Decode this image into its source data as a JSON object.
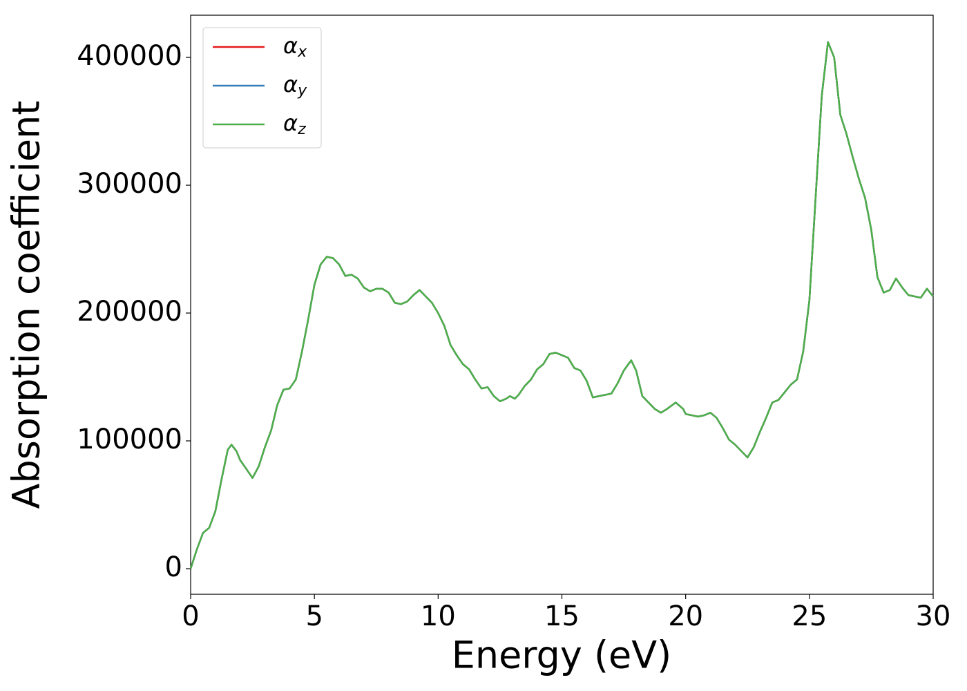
{
  "chart_data": {
    "type": "line",
    "xlabel": "Energy (eV)",
    "ylabel": "Absorption coefficient",
    "x": [
      0,
      0.25,
      0.5,
      0.75,
      1.0,
      1.25,
      1.5,
      1.65,
      1.85,
      2.0,
      2.25,
      2.5,
      2.75,
      3.0,
      3.25,
      3.5,
      3.75,
      4.0,
      4.25,
      4.5,
      4.75,
      5.0,
      5.25,
      5.5,
      5.75,
      6.0,
      6.25,
      6.5,
      6.75,
      7.0,
      7.25,
      7.5,
      7.75,
      8.0,
      8.25,
      8.5,
      8.75,
      9.0,
      9.25,
      9.5,
      9.75,
      10.0,
      10.25,
      10.5,
      10.75,
      11.0,
      11.25,
      11.5,
      11.75,
      12.0,
      12.25,
      12.5,
      12.75,
      12.9,
      13.1,
      13.25,
      13.5,
      13.75,
      14.0,
      14.25,
      14.5,
      14.75,
      15.0,
      15.25,
      15.5,
      15.75,
      16.0,
      16.25,
      16.5,
      17.0,
      17.25,
      17.5,
      17.8,
      18.0,
      18.25,
      18.5,
      18.75,
      19.0,
      19.25,
      19.6,
      19.9,
      20.0,
      20.5,
      20.75,
      21.0,
      21.25,
      21.5,
      21.75,
      22.0,
      22.25,
      22.5,
      22.75,
      23.0,
      23.25,
      23.5,
      23.75,
      24.0,
      24.25,
      24.5,
      24.75,
      25.0,
      25.25,
      25.5,
      25.75,
      26.0,
      26.25,
      26.5,
      26.75,
      27.0,
      27.25,
      27.5,
      27.75,
      28.0,
      28.25,
      28.5,
      28.75,
      29.0,
      29.5,
      29.75,
      30.0
    ],
    "series": [
      {
        "name": "αx",
        "color": "#e41a1c",
        "values": [
          0,
          15000,
          28000,
          32000,
          45000,
          70000,
          93000,
          97000,
          92000,
          85000,
          78000,
          71000,
          80000,
          95000,
          108000,
          128000,
          140000,
          141000,
          148000,
          170000,
          195000,
          222000,
          238000,
          244000,
          243000,
          238000,
          229000,
          230000,
          227000,
          220000,
          217000,
          219000,
          219000,
          216000,
          208000,
          207000,
          209000,
          214000,
          218000,
          213000,
          208000,
          200000,
          190000,
          175000,
          167000,
          160000,
          156000,
          148000,
          141000,
          142000,
          135000,
          131000,
          133000,
          135000,
          133000,
          136000,
          143000,
          148000,
          156000,
          160000,
          168000,
          169000,
          167000,
          165000,
          157000,
          155000,
          147000,
          134000,
          135000,
          137000,
          145000,
          155000,
          163000,
          155000,
          135000,
          130000,
          125000,
          122000,
          125000,
          130000,
          125000,
          121000,
          119000,
          120000,
          122000,
          118000,
          110000,
          101000,
          97000,
          92000,
          87000,
          95000,
          107000,
          118000,
          130000,
          132000,
          138000,
          144000,
          148000,
          170000,
          210000,
          290000,
          370000,
          412000,
          400000,
          355000,
          340000,
          322000,
          305000,
          290000,
          265000,
          228000,
          216000,
          218000,
          227000,
          220000,
          214000,
          212000,
          219000,
          213000
        ]
      },
      {
        "name": "αy",
        "color": "#377eb8",
        "values": [
          0,
          15000,
          28000,
          32000,
          45000,
          70000,
          93000,
          97000,
          92000,
          85000,
          78000,
          71000,
          80000,
          95000,
          108000,
          128000,
          140000,
          141000,
          148000,
          170000,
          195000,
          222000,
          238000,
          244000,
          243000,
          238000,
          229000,
          230000,
          227000,
          220000,
          217000,
          219000,
          219000,
          216000,
          208000,
          207000,
          209000,
          214000,
          218000,
          213000,
          208000,
          200000,
          190000,
          175000,
          167000,
          160000,
          156000,
          148000,
          141000,
          142000,
          135000,
          131000,
          133000,
          135000,
          133000,
          136000,
          143000,
          148000,
          156000,
          160000,
          168000,
          169000,
          167000,
          165000,
          157000,
          155000,
          147000,
          134000,
          135000,
          137000,
          145000,
          155000,
          163000,
          155000,
          135000,
          130000,
          125000,
          122000,
          125000,
          130000,
          125000,
          121000,
          119000,
          120000,
          122000,
          118000,
          110000,
          101000,
          97000,
          92000,
          87000,
          95000,
          107000,
          118000,
          130000,
          132000,
          138000,
          144000,
          148000,
          170000,
          210000,
          290000,
          370000,
          412000,
          400000,
          355000,
          340000,
          322000,
          305000,
          290000,
          265000,
          228000,
          216000,
          218000,
          227000,
          220000,
          214000,
          212000,
          219000,
          213000
        ]
      },
      {
        "name": "αz",
        "color": "#4daf4a",
        "values": [
          0,
          15000,
          28000,
          32000,
          45000,
          70000,
          93000,
          97000,
          92000,
          85000,
          78000,
          71000,
          80000,
          95000,
          108000,
          128000,
          140000,
          141000,
          148000,
          170000,
          195000,
          222000,
          238000,
          244000,
          243000,
          238000,
          229000,
          230000,
          227000,
          220000,
          217000,
          219000,
          219000,
          216000,
          208000,
          207000,
          209000,
          214000,
          218000,
          213000,
          208000,
          200000,
          190000,
          175000,
          167000,
          160000,
          156000,
          148000,
          141000,
          142000,
          135000,
          131000,
          133000,
          135000,
          133000,
          136000,
          143000,
          148000,
          156000,
          160000,
          168000,
          169000,
          167000,
          165000,
          157000,
          155000,
          147000,
          134000,
          135000,
          137000,
          145000,
          155000,
          163000,
          155000,
          135000,
          130000,
          125000,
          122000,
          125000,
          130000,
          125000,
          121000,
          119000,
          120000,
          122000,
          118000,
          110000,
          101000,
          97000,
          92000,
          87000,
          95000,
          107000,
          118000,
          130000,
          132000,
          138000,
          144000,
          148000,
          170000,
          210000,
          290000,
          370000,
          412000,
          400000,
          355000,
          340000,
          322000,
          305000,
          290000,
          265000,
          228000,
          216000,
          218000,
          227000,
          220000,
          214000,
          212000,
          219000,
          213000
        ]
      }
    ],
    "xlim": [
      0,
      30
    ],
    "xticks": [
      0,
      5,
      10,
      15,
      20,
      25,
      30
    ],
    "ylim": [
      -20000,
      433000
    ],
    "yticks": [
      0,
      100000,
      200000,
      300000,
      400000
    ],
    "legend": "upper-left"
  }
}
